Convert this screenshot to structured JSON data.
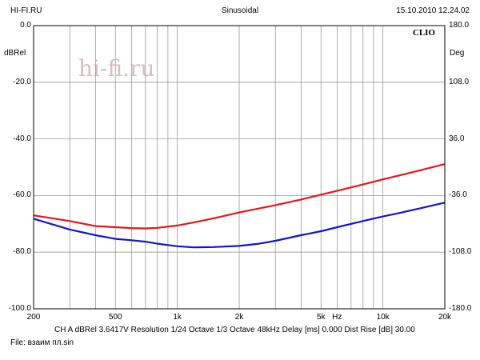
{
  "header": {
    "left": "HI-FI.RU",
    "center": "Sinusoidal",
    "right": "15.10.2010 12.24.02"
  },
  "brand": "CLIO",
  "watermark": "hi-fi.ru",
  "footer": {
    "line1": "CH A   dBRel 3.6417V   Resolution 1/24 Octave   1/3 Octave   48kHz   Delay [ms] 0.000   Dist Rise [dB] 30.00",
    "line2": "File: взаим пл.sin"
  },
  "chart_data": {
    "type": "line",
    "title": "Sinusoidal",
    "xlabel": "Hz",
    "ylabel": "dBRel",
    "y2label": "Deg",
    "x_scale": "log",
    "xlim": [
      200,
      20000
    ],
    "ylim": [
      -100,
      0
    ],
    "y2lim": [
      -180,
      180
    ],
    "grid": true,
    "x_ticks": [
      {
        "value": 200,
        "label": "200"
      },
      {
        "value": 500,
        "label": "500"
      },
      {
        "value": 1000,
        "label": "1k"
      },
      {
        "value": 2000,
        "label": "2k"
      },
      {
        "value": 5000,
        "label": "5k"
      },
      {
        "value": 10000,
        "label": "10k"
      },
      {
        "value": 20000,
        "label": "20k"
      }
    ],
    "y_ticks": [
      {
        "value": 0,
        "label": "0.0"
      },
      {
        "value": -20,
        "label": "-20.0"
      },
      {
        "value": -40,
        "label": "-40.0"
      },
      {
        "value": -60,
        "label": "-60.0"
      },
      {
        "value": -80,
        "label": "-80.0"
      },
      {
        "value": -100,
        "label": "-100.0"
      }
    ],
    "y2_ticks": [
      {
        "value": 180,
        "label": "180.0"
      },
      {
        "value": 108,
        "label": "108.0"
      },
      {
        "value": 36,
        "label": "36.0"
      },
      {
        "value": -36,
        "label": "-36.0"
      },
      {
        "value": -108,
        "label": "-108.0"
      },
      {
        "value": -180,
        "label": "-180.0"
      }
    ],
    "series": [
      {
        "color": "#e8141e",
        "x": [
          200,
          300,
          400,
          500,
          600,
          700,
          800,
          1000,
          1300,
          1600,
          2000,
          3000,
          4000,
          5000,
          6000,
          8000,
          10000,
          12000,
          15000,
          20000
        ],
        "values": [
          -67.0,
          -69.0,
          -70.8,
          -71.2,
          -71.5,
          -71.6,
          -71.4,
          -70.6,
          -69.0,
          -67.6,
          -66.0,
          -63.4,
          -61.4,
          -59.7,
          -58.3,
          -56.1,
          -54.3,
          -52.9,
          -51.2,
          -48.9
        ]
      },
      {
        "color": "#1414d2",
        "x": [
          200,
          300,
          400,
          500,
          600,
          700,
          800,
          1000,
          1200,
          1500,
          2000,
          2500,
          3000,
          4000,
          5000,
          6000,
          8000,
          10000,
          12000,
          15000,
          20000
        ],
        "values": [
          -68.2,
          -72.0,
          -74.0,
          -75.3,
          -75.8,
          -76.3,
          -77.0,
          -77.9,
          -78.3,
          -78.2,
          -77.8,
          -77.0,
          -76.0,
          -74.0,
          -72.6,
          -71.2,
          -69.0,
          -67.4,
          -66.2,
          -64.6,
          -62.5
        ]
      }
    ]
  }
}
